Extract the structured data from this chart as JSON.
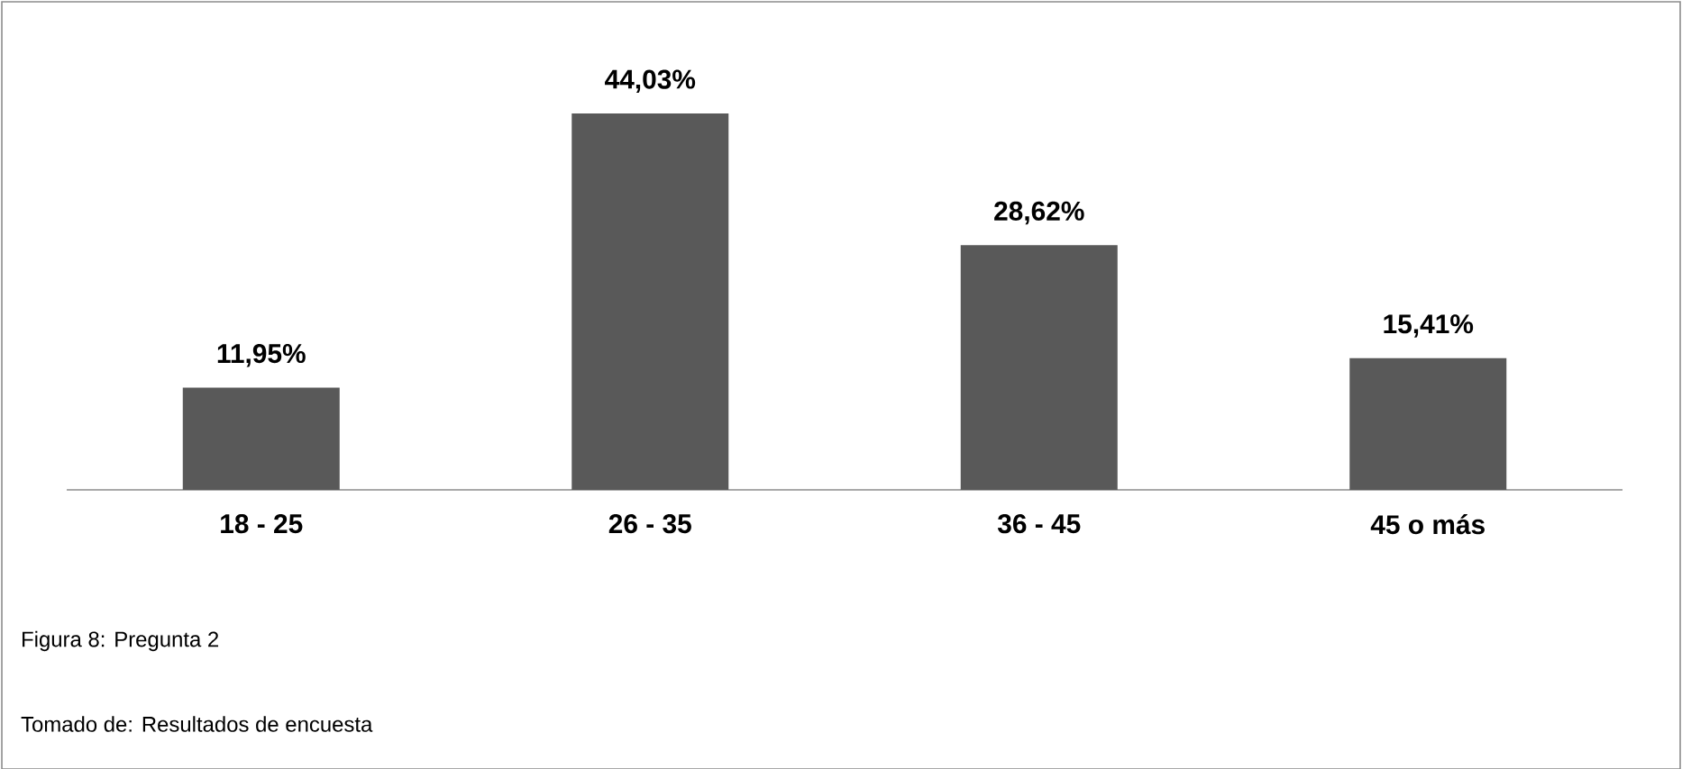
{
  "chart_data": {
    "type": "bar",
    "categories": [
      "18 - 25",
      "26 - 35",
      "36 - 45",
      "45 o más"
    ],
    "values": [
      11.95,
      44.03,
      28.62,
      15.41
    ],
    "value_labels": [
      "11,95%",
      "44,03%",
      "28,62%",
      "15,41%"
    ],
    "color": "#595959",
    "annotations": [
      "Figura 8: Pregunta 2",
      "Tomado de: Resultados de encuesta"
    ]
  }
}
